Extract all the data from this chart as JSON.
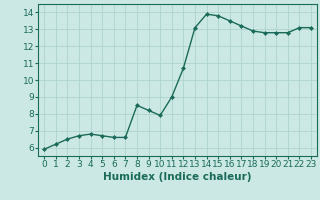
{
  "x": [
    0,
    1,
    2,
    3,
    4,
    5,
    6,
    7,
    8,
    9,
    10,
    11,
    12,
    13,
    14,
    15,
    16,
    17,
    18,
    19,
    20,
    21,
    22,
    23
  ],
  "y": [
    5.9,
    6.2,
    6.5,
    6.7,
    6.8,
    6.7,
    6.6,
    6.6,
    8.5,
    8.2,
    7.9,
    9.0,
    10.7,
    13.1,
    13.9,
    13.8,
    13.5,
    13.2,
    12.9,
    12.8,
    12.8,
    12.8,
    13.1,
    13.1
  ],
  "line_color": "#1a6b5a",
  "marker": "D",
  "marker_size": 2.0,
  "bg_color": "#cce8e4",
  "grid_color": "#aed4ce",
  "xlabel": "Humidex (Indice chaleur)",
  "ylim": [
    5.5,
    14.5
  ],
  "xlim": [
    -0.5,
    23.5
  ],
  "yticks": [
    6,
    7,
    8,
    9,
    10,
    11,
    12,
    13,
    14
  ],
  "xticks": [
    0,
    1,
    2,
    3,
    4,
    5,
    6,
    7,
    8,
    9,
    10,
    11,
    12,
    13,
    14,
    15,
    16,
    17,
    18,
    19,
    20,
    21,
    22,
    23
  ],
  "tick_label_fontsize": 6.5,
  "xlabel_fontsize": 7.5,
  "linewidth": 1.0
}
